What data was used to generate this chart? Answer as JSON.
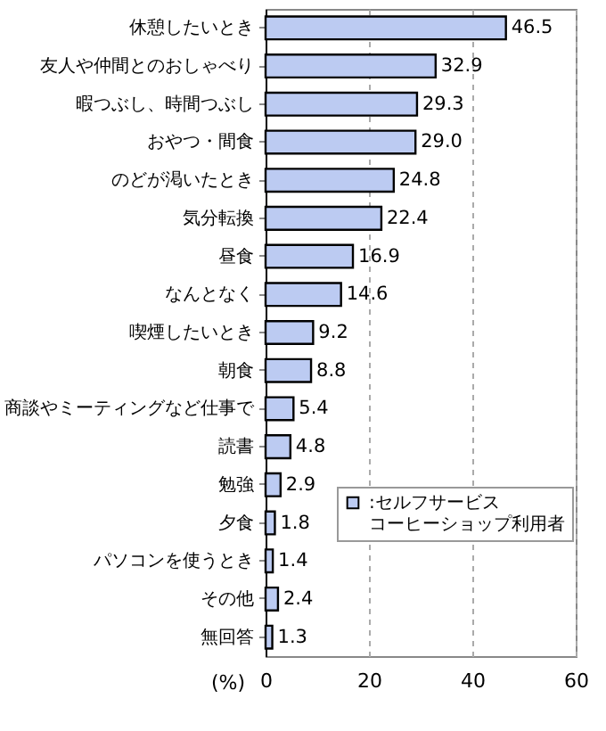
{
  "chart_data": {
    "type": "bar",
    "orientation": "horizontal",
    "xlabel": "(%)",
    "categories": [
      "休憩したいとき",
      "友人や仲間とのおしゃべり",
      "暇つぶし、時間つぶし",
      "おやつ・間食",
      "のどが渇いたとき",
      "気分転換",
      "昼食",
      "なんとなく",
      "喫煙したいとき",
      "朝食",
      "商談やミーティングなど仕事で",
      "読書",
      "勉強",
      "夕食",
      "パソコンを使うとき",
      "その他",
      "無回答"
    ],
    "series": [
      {
        "name": ":セルフサービスコーヒーショップ利用者",
        "color": "#bccbf2",
        "values": [
          46.5,
          32.9,
          29.3,
          29.0,
          24.8,
          22.4,
          16.9,
          14.6,
          9.2,
          8.8,
          5.4,
          4.8,
          2.9,
          1.8,
          1.4,
          2.4,
          1.3
        ]
      }
    ],
    "value_labels": [
      "46.5",
      "32.9",
      "29.3",
      "29.0",
      "24.8",
      "22.4",
      "16.9",
      "14.6",
      "9.2",
      "8.8",
      "5.4",
      "4.8",
      "2.9",
      "1.8",
      "1.4",
      "2.4",
      "1.3"
    ],
    "xlim": [
      0,
      60
    ],
    "xticks": [
      0,
      20,
      40,
      60
    ],
    "grid": "x",
    "legend": "bottom right"
  }
}
